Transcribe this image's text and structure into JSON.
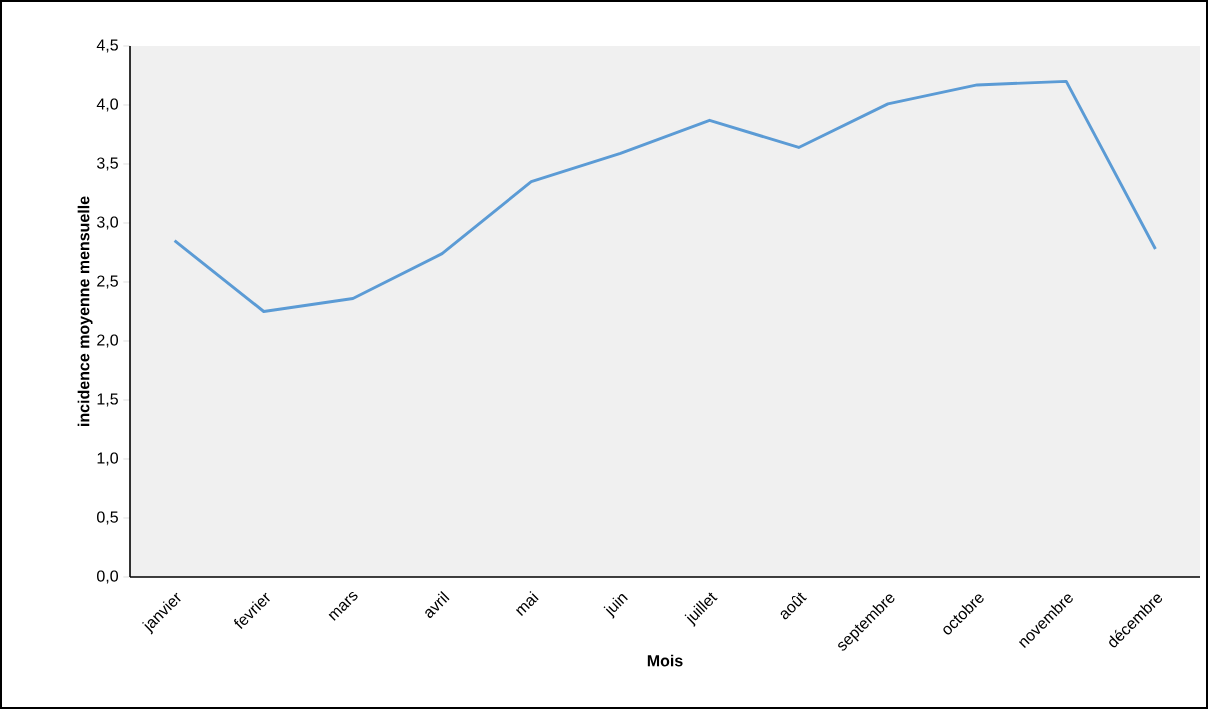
{
  "chart_data": {
    "type": "line",
    "xlabel": "Mois",
    "ylabel": "incidence moyenne mensuelle",
    "categories": [
      "janvier",
      "fevrier",
      "mars",
      "avril",
      "mai",
      "juin",
      "juillet",
      "août",
      "septembre",
      "octobre",
      "novembre",
      "décembre"
    ],
    "values": [
      2.85,
      2.25,
      2.36,
      2.74,
      3.35,
      3.59,
      3.87,
      3.64,
      4.01,
      4.17,
      4.2,
      2.78
    ],
    "color": "#5b9bd5",
    "ylim": [
      0,
      4.5
    ],
    "yticks": [
      {
        "value": 0,
        "label": "0,0"
      },
      {
        "value": 0.5,
        "label": "0,5"
      },
      {
        "value": 1,
        "label": "1,0"
      },
      {
        "value": 1.5,
        "label": "1,5"
      },
      {
        "value": 2,
        "label": "2,0"
      },
      {
        "value": 2.5,
        "label": "2,5"
      },
      {
        "value": 3,
        "label": "3,0"
      },
      {
        "value": 3.5,
        "label": "3,5"
      },
      {
        "value": 4,
        "label": "4,0"
      },
      {
        "value": 4.5,
        "label": "4,5"
      }
    ],
    "grid": false,
    "marker": "none",
    "line_style": "solid"
  }
}
